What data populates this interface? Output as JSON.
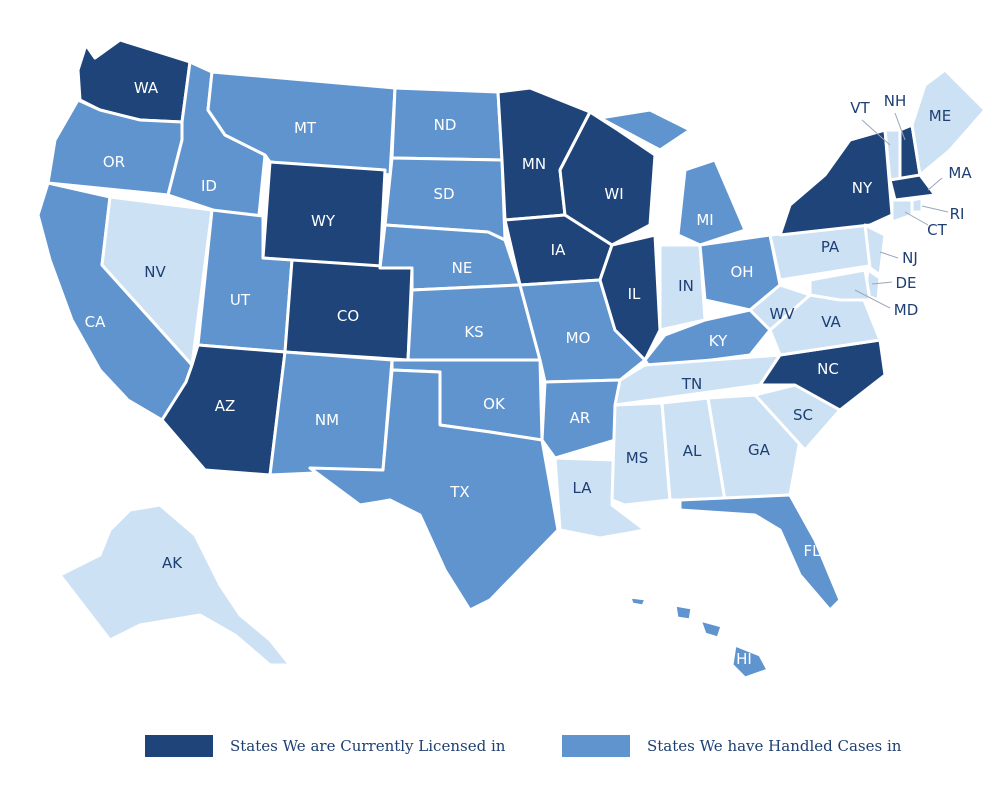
{
  "colors": {
    "licensed": "#1e4479",
    "handled": "#6094cf",
    "other": "#cde1f4",
    "label_dark_bg": "#ffffff",
    "label_light_bg": "#1e3f73"
  },
  "states": [
    {
      "code": "WA",
      "status": "licensed"
    },
    {
      "code": "OR",
      "status": "handled"
    },
    {
      "code": "CA",
      "status": "handled"
    },
    {
      "code": "NV",
      "status": "other"
    },
    {
      "code": "ID",
      "status": "handled"
    },
    {
      "code": "MT",
      "status": "handled"
    },
    {
      "code": "WY",
      "status": "licensed"
    },
    {
      "code": "UT",
      "status": "handled"
    },
    {
      "code": "CO",
      "status": "licensed"
    },
    {
      "code": "AZ",
      "status": "licensed"
    },
    {
      "code": "NM",
      "status": "handled"
    },
    {
      "code": "ND",
      "status": "handled"
    },
    {
      "code": "SD",
      "status": "handled"
    },
    {
      "code": "NE",
      "status": "handled"
    },
    {
      "code": "KS",
      "status": "handled"
    },
    {
      "code": "OK",
      "status": "handled"
    },
    {
      "code": "TX",
      "status": "handled"
    },
    {
      "code": "MN",
      "status": "licensed"
    },
    {
      "code": "IA",
      "status": "licensed"
    },
    {
      "code": "MO",
      "status": "handled"
    },
    {
      "code": "AR",
      "status": "handled"
    },
    {
      "code": "LA",
      "status": "other"
    },
    {
      "code": "WI",
      "status": "licensed"
    },
    {
      "code": "IL",
      "status": "licensed"
    },
    {
      "code": "MI",
      "status": "handled"
    },
    {
      "code": "IN",
      "status": "other"
    },
    {
      "code": "OH",
      "status": "handled"
    },
    {
      "code": "KY",
      "status": "handled"
    },
    {
      "code": "TN",
      "status": "other"
    },
    {
      "code": "MS",
      "status": "other"
    },
    {
      "code": "AL",
      "status": "other"
    },
    {
      "code": "GA",
      "status": "other"
    },
    {
      "code": "FL",
      "status": "handled"
    },
    {
      "code": "SC",
      "status": "other"
    },
    {
      "code": "NC",
      "status": "licensed"
    },
    {
      "code": "VA",
      "status": "other"
    },
    {
      "code": "WV",
      "status": "other"
    },
    {
      "code": "PA",
      "status": "other"
    },
    {
      "code": "NY",
      "status": "licensed"
    },
    {
      "code": "NJ",
      "status": "other"
    },
    {
      "code": "DE",
      "status": "other"
    },
    {
      "code": "MD",
      "status": "other"
    },
    {
      "code": "VT",
      "status": "other"
    },
    {
      "code": "NH",
      "status": "licensed"
    },
    {
      "code": "ME",
      "status": "other"
    },
    {
      "code": "MA",
      "status": "licensed"
    },
    {
      "code": "RI",
      "status": "other"
    },
    {
      "code": "CT",
      "status": "other"
    },
    {
      "code": "AK",
      "status": "other"
    },
    {
      "code": "HI",
      "status": "handled"
    }
  ],
  "legend": {
    "licensed_label": "States We are Currently Licensed in",
    "handled_label": "States We have Handled Cases in"
  }
}
